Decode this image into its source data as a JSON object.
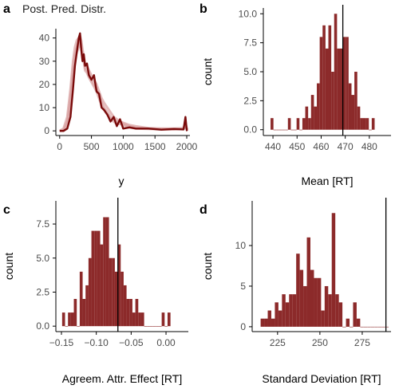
{
  "colors": {
    "bar": "#8c2a2a",
    "line": "#7a0a0a",
    "band": "#d9a3a3",
    "axis": "#000000",
    "ref": "#000000"
  },
  "chart_data": [
    {
      "panel": "a",
      "type": "line",
      "title": "Post. Pred. Distr.",
      "xlabel": "y",
      "ylabel": "",
      "xlim": [
        -60,
        2050
      ],
      "ylim": [
        -2,
        44
      ],
      "xticks": [
        0,
        500,
        1000,
        1500,
        2000
      ],
      "yticks": [
        0,
        10,
        20,
        30,
        40
      ],
      "series": [
        {
          "x": [
            0,
            60,
            120,
            170,
            210,
            240,
            270,
            300,
            320,
            340,
            360,
            380,
            400,
            430,
            460,
            500,
            540,
            580,
            620,
            660,
            700,
            750,
            800,
            850,
            900,
            950,
            1000,
            1100,
            1200,
            1400,
            1600,
            1800,
            1950,
            1980,
            2000,
            2010
          ],
          "y": [
            0,
            0.5,
            4,
            14,
            26,
            33,
            36,
            38,
            39,
            37,
            33,
            30,
            27,
            26,
            24,
            22,
            20,
            18,
            15,
            12,
            10,
            8,
            6,
            5,
            4,
            4,
            3,
            2,
            1.5,
            1,
            0.8,
            0.8,
            1,
            3,
            1,
            0.5
          ]
        },
        {
          "x": [
            0,
            60,
            120,
            170,
            210,
            240,
            270,
            300,
            320,
            340,
            360,
            380,
            400,
            430,
            460,
            500,
            540,
            580,
            620,
            660,
            700,
            750,
            800,
            850,
            900,
            950,
            1000,
            1100,
            1200,
            1400,
            1600,
            1800,
            1950,
            1980,
            2000,
            2010
          ],
          "y": [
            0,
            1,
            6,
            18,
            30,
            36,
            39,
            40,
            41,
            39,
            35,
            32,
            29,
            28,
            26,
            24,
            22,
            20,
            17,
            14,
            12,
            10,
            8,
            6,
            5,
            4,
            3.5,
            2.5,
            2,
            1.2,
            1,
            1,
            1.2,
            3.5,
            1.2,
            0.6
          ]
        },
        {
          "x": [
            0,
            60,
            120,
            170,
            210,
            240,
            270,
            300,
            320,
            340,
            360,
            380,
            400,
            430,
            460,
            500,
            540,
            580,
            620,
            660,
            700,
            750,
            800,
            850,
            900,
            950,
            1000,
            1100,
            1200,
            1400,
            1600,
            1800,
            1950,
            1980,
            2000,
            2010
          ],
          "y": [
            0,
            0,
            3,
            12,
            24,
            31,
            34,
            36,
            38,
            36,
            32,
            30,
            26,
            25,
            23,
            21,
            19,
            17,
            14,
            11,
            9,
            7,
            5,
            4,
            3,
            3,
            2.5,
            1.5,
            1,
            0.8,
            0.6,
            0.6,
            0.8,
            2.5,
            0.8,
            0.3
          ]
        },
        {
          "x": [
            0,
            60,
            120,
            170,
            210,
            240,
            270,
            300,
            320,
            340,
            360,
            380,
            400,
            430,
            460,
            500,
            540,
            580,
            620,
            660,
            700,
            750,
            800,
            850,
            900,
            950,
            1000,
            1100,
            1200,
            1400,
            1600,
            1800,
            1950,
            1980,
            2000,
            2010
          ],
          "y": [
            0,
            0,
            1,
            6,
            18,
            28,
            34,
            40,
            42,
            35,
            30,
            33,
            28,
            29,
            24,
            22,
            24,
            17,
            16,
            10,
            9,
            7,
            4,
            6,
            2,
            5,
            1,
            1.5,
            1,
            1,
            0.5,
            0.8,
            0.6,
            6,
            0.3,
            0
          ]
        }
      ]
    },
    {
      "panel": "b",
      "type": "bar",
      "title": "",
      "xlabel": "Mean [RT]",
      "ylabel": "count",
      "xlim": [
        436,
        489
      ],
      "ylim": [
        -0.5,
        10.5
      ],
      "xticks": [
        440,
        450,
        460,
        470,
        480
      ],
      "yticks": [
        0,
        2.5,
        5,
        7.5,
        10
      ],
      "ytick_labels": [
        "0.0",
        "2.5",
        "5.0",
        "7.5",
        "10.0"
      ],
      "bin_start": 439,
      "bin_width": 1.2,
      "counts": [
        1,
        0,
        0,
        0,
        0,
        0,
        1,
        0,
        0,
        1,
        0,
        1,
        2,
        1,
        3,
        2,
        4,
        8,
        9,
        7,
        9,
        5,
        10,
        7,
        7,
        8,
        8,
        4,
        3,
        5,
        2,
        1,
        1,
        1,
        0,
        1
      ],
      "vline": 469
    },
    {
      "panel": "c",
      "type": "bar",
      "title": "",
      "xlabel": "Agreem. Attr. Effect [RT]",
      "ylabel": "count",
      "xlim": [
        -0.158,
        0.032
      ],
      "ylim": [
        -0.4,
        9.2
      ],
      "xticks": [
        -0.15,
        -0.1,
        -0.05,
        0
      ],
      "xtick_labels": [
        "−0.15",
        "−0.10",
        "−0.05",
        "0.00"
      ],
      "yticks": [
        0,
        2.5,
        5,
        7.5
      ],
      "ytick_labels": [
        "0.0",
        "2.5",
        "5.0",
        "7.5"
      ],
      "bin_start": -0.149,
      "bin_width": 0.0042,
      "counts": [
        1,
        0,
        1,
        1,
        2,
        0,
        4,
        2,
        3,
        5,
        7,
        7,
        7,
        6,
        8,
        8,
        5,
        5,
        4,
        6,
        4,
        3,
        2,
        2,
        1,
        2,
        1,
        1,
        0,
        0,
        0,
        0,
        0,
        0,
        1,
        0,
        1
      ],
      "vline": -0.069
    },
    {
      "panel": "d",
      "type": "bar",
      "title": "",
      "xlabel": "Standard Deviation [RT]",
      "ylabel": "count",
      "xlim": [
        210,
        292
      ],
      "ylim": [
        -0.6,
        15.5
      ],
      "xticks": [
        225,
        250,
        275
      ],
      "yticks": [
        0,
        5,
        10
      ],
      "bin_start": 215,
      "bin_width": 2.1,
      "counts": [
        1,
        1,
        2,
        1,
        3,
        2,
        4,
        3,
        4,
        4,
        9,
        7,
        5,
        11,
        7,
        6,
        6,
        2,
        5,
        4,
        14,
        4,
        3,
        0,
        1,
        0,
        3,
        1,
        0,
        0,
        0,
        0,
        0,
        0,
        0,
        0
      ],
      "vline": 289
    }
  ]
}
